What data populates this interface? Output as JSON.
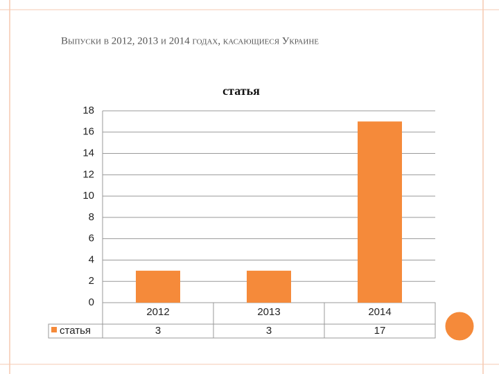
{
  "slide_title": "Выпуски в 2012, 2013 и 2014 годах, касающиеся Украине",
  "chart_data": {
    "type": "bar",
    "title": "статья",
    "categories": [
      "2012",
      "2013",
      "2014"
    ],
    "series": [
      {
        "name": "статья",
        "color": "#f58a3a",
        "values": [
          3,
          3,
          17
        ]
      }
    ],
    "ylim": [
      0,
      18
    ],
    "yticks": [
      0,
      2,
      4,
      6,
      8,
      10,
      12,
      14,
      16,
      18
    ],
    "grid": true,
    "data_table": true
  }
}
